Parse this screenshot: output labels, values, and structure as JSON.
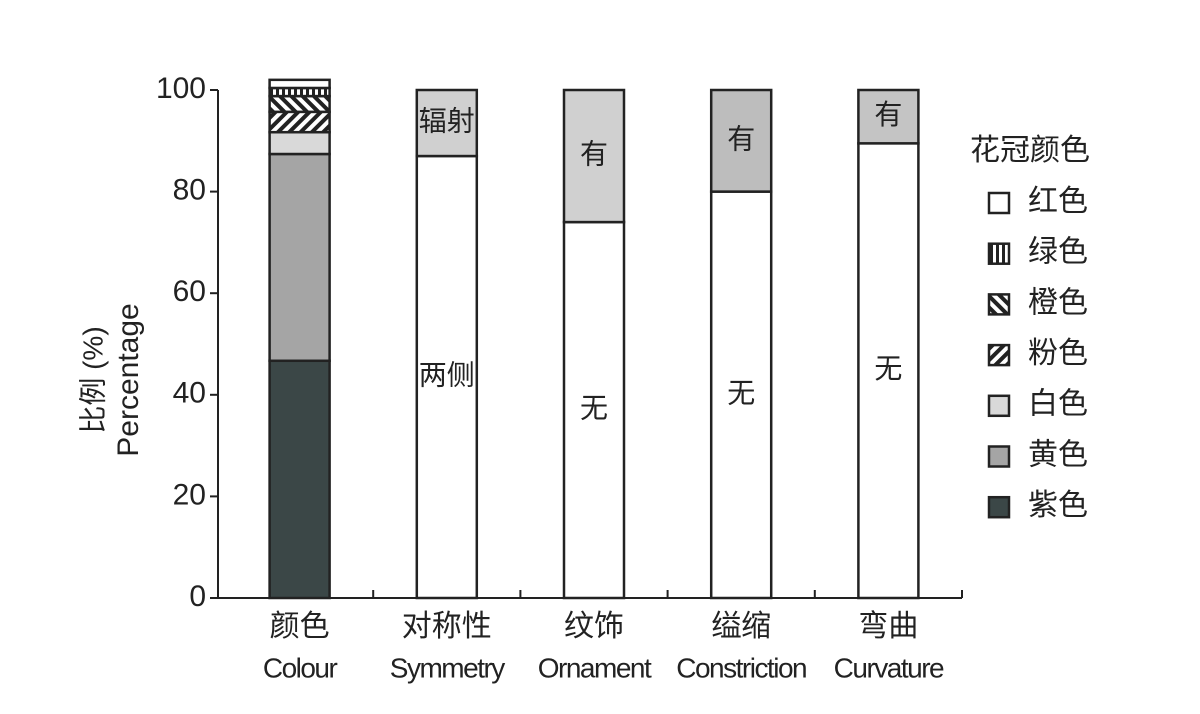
{
  "chart_data": {
    "type": "stacked_bar",
    "y_label": "比例 (%)",
    "y_label_en": "Percentage",
    "categories": [
      "颜色",
      "对称性",
      "纹饰",
      "缢缩",
      "弯曲"
    ],
    "categories_en": [
      "Colour",
      "Symmetry",
      "Ornament",
      "Constriction",
      "Curvature"
    ],
    "ylim": [
      0,
      100
    ],
    "yticks": [
      0,
      20,
      40,
      60,
      80,
      100
    ],
    "legend_title": "花冠颜色",
    "legend_bar": 0,
    "legend_position": "right",
    "bars": [
      {
        "segments": [
          {
            "name": "紫色",
            "value": 46.7,
            "color": "#3b4747",
            "pattern": "solid"
          },
          {
            "name": "黄色",
            "value": 40.7,
            "color": "#a5a5a5",
            "pattern": "solid"
          },
          {
            "name": "白色",
            "value": 4.3,
            "color": "#d9d9d9",
            "pattern": "solid"
          },
          {
            "name": "粉色",
            "value": 4.0,
            "color": "#222222",
            "pattern": "forward"
          },
          {
            "name": "橙色",
            "value": 3.1,
            "color": "#222222",
            "pattern": "backward"
          },
          {
            "name": "绿色",
            "value": 1.6,
            "color": "#222222",
            "pattern": "vertical"
          },
          {
            "name": "红色",
            "value": 1.6,
            "color": "#ffffff",
            "pattern": "solid"
          }
        ]
      },
      {
        "segments": [
          {
            "name": "两侧",
            "value": 87,
            "color": "#ffffff",
            "pattern": "solid"
          },
          {
            "name": "辐射",
            "value": 13,
            "color": "#d0d0d0",
            "pattern": "solid"
          }
        ]
      },
      {
        "segments": [
          {
            "name": "无",
            "value": 74,
            "color": "#ffffff",
            "pattern": "solid"
          },
          {
            "name": "有",
            "value": 26,
            "color": "#d0d0d0",
            "pattern": "solid"
          }
        ]
      },
      {
        "segments": [
          {
            "name": "无",
            "value": 80,
            "color": "#ffffff",
            "pattern": "solid"
          },
          {
            "name": "有",
            "value": 20,
            "color": "#bdbdbd",
            "pattern": "solid"
          }
        ]
      },
      {
        "segments": [
          {
            "name": "无",
            "value": 89.5,
            "color": "#ffffff",
            "pattern": "solid"
          },
          {
            "name": "有",
            "value": 10.5,
            "color": "#c4c4c4",
            "pattern": "solid"
          }
        ]
      }
    ]
  }
}
